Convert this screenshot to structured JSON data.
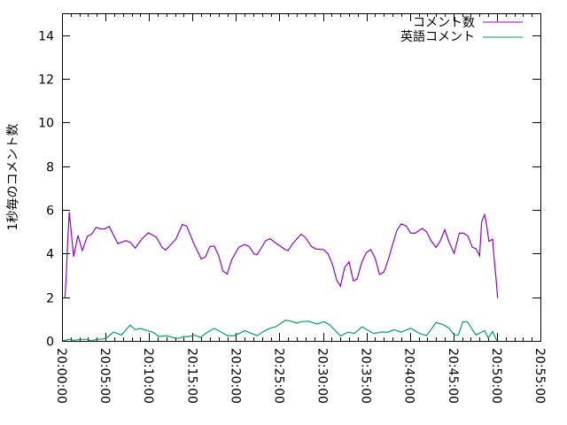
{
  "chart_data": {
    "type": "line",
    "title": "",
    "xlabel": "",
    "ylabel": "1秒毎のコメント数",
    "xlim": [
      "20:00:00",
      "20:55:00"
    ],
    "ylim": [
      0,
      15
    ],
    "x_ticks": [
      "20:00:00",
      "20:05:00",
      "20:10:00",
      "20:15:00",
      "20:20:00",
      "20:25:00",
      "20:30:00",
      "20:35:00",
      "20:40:00",
      "20:45:00",
      "20:50:00",
      "20:55:00"
    ],
    "y_ticks": [
      "0",
      "2",
      "4",
      "6",
      "8",
      "10",
      "12",
      "14"
    ],
    "grid": false,
    "legend_placement": "top-right",
    "series": [
      {
        "name": "コメント数",
        "color": "#9400D3",
        "x": [
          "20:00:20",
          "20:00:30",
          "20:00:40",
          "20:00:50",
          "20:01:05",
          "20:01:20",
          "20:01:50",
          "20:02:20",
          "20:02:55",
          "20:03:25",
          "20:03:55",
          "20:04:25",
          "20:04:55",
          "20:05:25",
          "20:06:25",
          "20:07:20",
          "20:07:50",
          "20:08:25",
          "20:09:10",
          "20:09:55",
          "20:10:50",
          "20:11:30",
          "20:11:55",
          "20:13:05",
          "20:13:50",
          "20:14:20",
          "20:15:05",
          "20:16:00",
          "20:16:30",
          "20:17:00",
          "20:17:30",
          "20:18:00",
          "20:18:30",
          "20:19:00",
          "20:19:30",
          "20:20:20",
          "20:21:00",
          "20:21:30",
          "20:22:05",
          "20:22:25",
          "20:23:25",
          "20:23:55",
          "20:24:45",
          "20:25:40",
          "20:26:00",
          "20:26:30",
          "20:27:30",
          "20:28:00",
          "20:28:40",
          "20:29:10",
          "20:30:05",
          "20:30:35",
          "20:31:05",
          "20:31:35",
          "20:32:00",
          "20:32:30",
          "20:33:00",
          "20:33:30",
          "20:33:55",
          "20:34:30",
          "20:35:00",
          "20:35:30",
          "20:36:00",
          "20:36:30",
          "20:37:00",
          "20:37:30",
          "20:38:05",
          "20:38:30",
          "20:39:00",
          "20:39:35",
          "20:40:05",
          "20:40:35",
          "20:41:25",
          "20:41:55",
          "20:42:25",
          "20:43:00",
          "20:43:30",
          "20:44:00",
          "20:44:30",
          "20:45:05",
          "20:45:40",
          "20:46:10",
          "20:46:40",
          "20:47:10",
          "20:47:35",
          "20:48:00",
          "20:48:15",
          "20:48:35",
          "20:48:45",
          "20:49:05",
          "20:49:30",
          "20:49:40",
          "20:49:55",
          "20:50:05"
        ],
        "y": [
          1.96,
          3.1,
          4.65,
          5.9,
          4.9,
          3.85,
          4.83,
          4.14,
          4.79,
          4.89,
          5.2,
          5.13,
          5.13,
          5.24,
          4.45,
          4.59,
          4.52,
          4.25,
          4.66,
          4.95,
          4.75,
          4.28,
          4.16,
          4.66,
          5.33,
          5.26,
          4.52,
          3.75,
          3.85,
          4.32,
          4.34,
          3.91,
          3.2,
          3.06,
          3.71,
          4.29,
          4.41,
          4.32,
          3.98,
          3.94,
          4.59,
          4.68,
          4.43,
          4.18,
          4.14,
          4.45,
          4.89,
          4.72,
          4.32,
          4.21,
          4.18,
          3.98,
          3.51,
          2.77,
          2.5,
          3.37,
          3.62,
          2.74,
          2.83,
          3.64,
          4.05,
          4.18,
          3.78,
          3.04,
          3.15,
          3.71,
          4.52,
          5.06,
          5.36,
          5.26,
          4.93,
          4.93,
          5.15,
          4.99,
          4.59,
          4.28,
          4.59,
          5.09,
          4.52,
          4.01,
          4.93,
          4.93,
          4.79,
          4.29,
          4.22,
          3.89,
          5.47,
          5.78,
          5.47,
          4.56,
          4.66,
          3.85,
          2.77,
          1.96
        ]
      },
      {
        "name": "英語コメント",
        "color": "#009E73",
        "x": [
          "20:00:05",
          "20:00:50",
          "20:01:20",
          "20:02:15",
          "20:02:55",
          "20:03:25",
          "20:03:55",
          "20:04:45",
          "20:05:15",
          "20:05:55",
          "20:06:50",
          "20:07:50",
          "20:08:25",
          "20:09:00",
          "20:09:50",
          "20:10:30",
          "20:11:10",
          "20:11:55",
          "20:12:25",
          "20:13:05",
          "20:13:35",
          "20:13:55",
          "20:14:35",
          "20:15:15",
          "20:15:55",
          "20:16:40",
          "20:17:30",
          "20:18:00",
          "20:19:00",
          "20:19:50",
          "20:21:00",
          "20:22:25",
          "20:23:15",
          "20:23:55",
          "20:24:35",
          "20:25:40",
          "20:26:10",
          "20:27:00",
          "20:27:30",
          "20:28:20",
          "20:29:20",
          "20:30:05",
          "20:30:45",
          "20:32:00",
          "20:32:55",
          "20:33:35",
          "20:34:30",
          "20:35:50",
          "20:36:40",
          "20:37:30",
          "20:38:10",
          "20:39:00",
          "20:40:05",
          "20:41:05",
          "20:41:55",
          "20:43:00",
          "20:43:50",
          "20:44:30",
          "20:45:05",
          "20:45:35",
          "20:46:05",
          "20:46:35",
          "20:47:35",
          "20:48:35",
          "20:49:00",
          "20:49:30",
          "20:50:00"
        ],
        "y": [
          0,
          0.07,
          0.03,
          0.07,
          0.07,
          0,
          0.07,
          0.09,
          0.17,
          0.4,
          0.27,
          0.72,
          0.51,
          0.57,
          0.47,
          0.38,
          0.2,
          0.23,
          0.2,
          0.11,
          0.13,
          0.2,
          0.2,
          0.26,
          0.16,
          0.38,
          0.57,
          0.47,
          0.24,
          0.24,
          0.47,
          0.24,
          0.45,
          0.58,
          0.65,
          0.94,
          0.92,
          0.81,
          0.88,
          0.9,
          0.77,
          0.88,
          0.74,
          0.23,
          0.4,
          0.34,
          0.64,
          0.34,
          0.4,
          0.4,
          0.51,
          0.4,
          0.58,
          0.34,
          0.24,
          0.84,
          0.74,
          0.58,
          0.27,
          0.27,
          0.88,
          0.88,
          0.27,
          0.47,
          0.13,
          0.43,
          0
        ]
      }
    ]
  }
}
